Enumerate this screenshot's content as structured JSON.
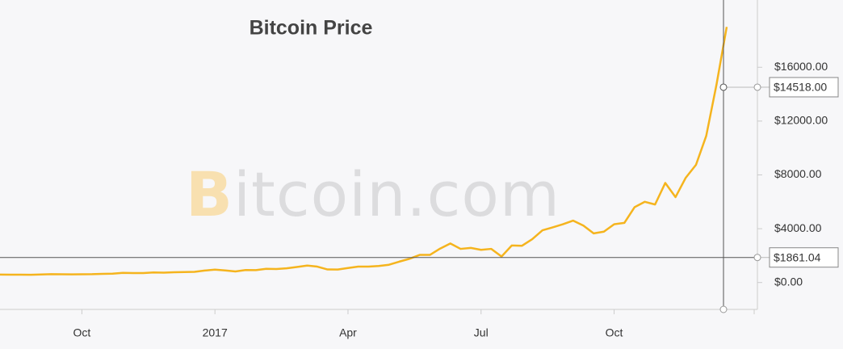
{
  "chart_data": {
    "type": "line",
    "title": "Bitcoin Price",
    "watermark": "Bitcoin.com",
    "categories": [
      null,
      null,
      null,
      null,
      null,
      null,
      null,
      null,
      "Oct",
      null,
      null,
      null,
      null,
      null,
      null,
      null,
      null,
      null,
      null,
      null,
      null,
      "2017",
      null,
      null,
      null,
      null,
      null,
      null,
      null,
      null,
      null,
      null,
      null,
      null,
      "Apr",
      null,
      null,
      null,
      null,
      null,
      null,
      null,
      null,
      null,
      null,
      null,
      null,
      "Jul",
      null,
      null,
      null,
      null,
      null,
      null,
      null,
      null,
      null,
      null,
      null,
      null,
      "Oct",
      null,
      null,
      null,
      null,
      null,
      null,
      null,
      null,
      null,
      null,
      null
    ],
    "series": [
      {
        "name": "Bitcoin Price",
        "color": "#f5b41e",
        "values": [
          590,
          585,
          580,
          575,
          600,
          620,
          610,
          603,
          613,
          617,
          640,
          655,
          715,
          705,
          705,
          750,
          735,
          765,
          775,
          790,
          890,
          960,
          900,
          820,
          925,
          920,
          1020,
          1000,
          1055,
          1150,
          1260,
          1180,
          970,
          965,
          1080,
          1180,
          1180,
          1230,
          1320,
          1550,
          1760,
          2050,
          2050,
          2520,
          2900,
          2500,
          2570,
          2430,
          2500,
          1930,
          2750,
          2730,
          3220,
          3880,
          4100,
          4330,
          4600,
          4230,
          3650,
          3780,
          4330,
          4430,
          5600,
          6000,
          5800,
          7400,
          6350,
          7790,
          8750,
          10900,
          14700,
          19000
        ]
      }
    ],
    "ylim": [
      -2000,
      21000
    ],
    "yticks": [
      {
        "value": 0,
        "label": "$0.00"
      },
      {
        "value": 4000,
        "label": "$4000.00"
      },
      {
        "value": 8000,
        "label": "$8000.00"
      },
      {
        "value": 12000,
        "label": "$12000.00"
      },
      {
        "value": 16000,
        "label": "$16000.00"
      }
    ],
    "crosshair_labels": [
      {
        "value": 14518,
        "label": "$14518.00"
      },
      {
        "value": 1861.04,
        "label": "$1861.04"
      }
    ]
  }
}
